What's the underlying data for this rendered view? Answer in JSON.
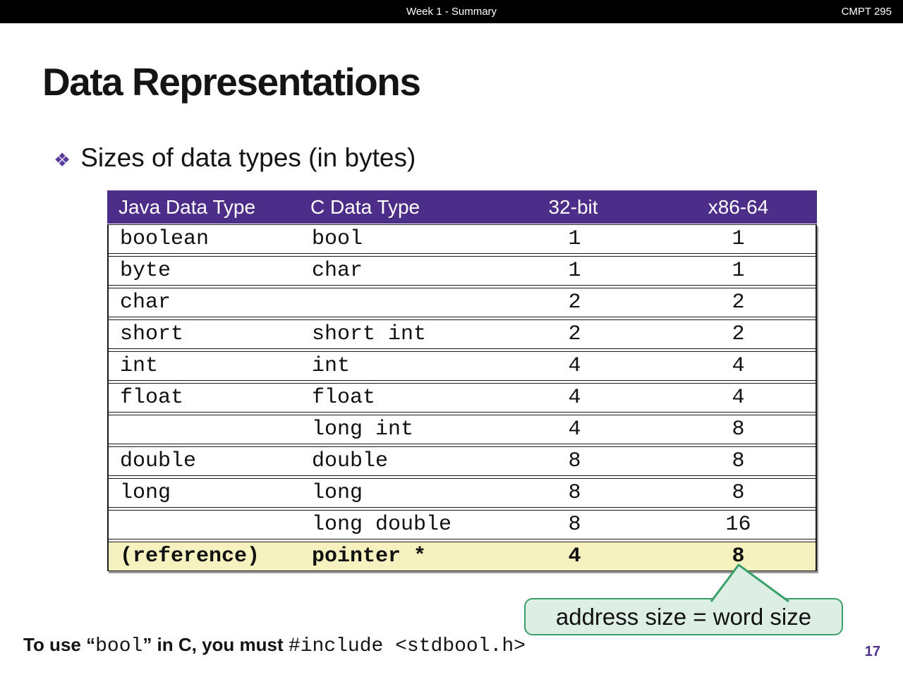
{
  "top_bar": {
    "center_label": "Week 1 - Summary",
    "right_label": "CMPT 295"
  },
  "slide": {
    "title": "Data Representations",
    "bullet_marker": "❖",
    "bullet_text": "Sizes of data types (in bytes)"
  },
  "table": {
    "headers": [
      "Java Data Type",
      "C Data Type",
      "32-bit",
      "x86-64"
    ],
    "rows": [
      [
        "boolean",
        "bool",
        "1",
        "1"
      ],
      [
        "byte",
        "char",
        "1",
        "1"
      ],
      [
        "char",
        "",
        "2",
        "2"
      ],
      [
        "short",
        "short int",
        "2",
        "2"
      ],
      [
        "int",
        "int",
        "4",
        "4"
      ],
      [
        "float",
        "float",
        "4",
        "4"
      ],
      [
        "",
        "long int",
        "4",
        "8"
      ],
      [
        "double",
        "double",
        "8",
        "8"
      ],
      [
        "long",
        "long",
        "8",
        "8"
      ],
      [
        "",
        "long double",
        "8",
        "16"
      ],
      [
        "(reference)",
        "pointer *",
        "4",
        "8"
      ]
    ],
    "highlight_row_index": 10
  },
  "callout": {
    "text": "address size = word size"
  },
  "footnote": {
    "parts": [
      "To use “",
      "bool",
      "” in C, you must ",
      "#include <stdbool.h>"
    ]
  },
  "page_number": "17",
  "colors": {
    "top_bar_bg": "#000000",
    "header_bg": "#4C2E88",
    "header_text": "#FFFFFF",
    "row_border": "#1A1A1A",
    "highlight_bg": "#F5F2C0",
    "callout_bg": "#DDEFE5",
    "callout_border": "#3AA06A",
    "bullet_purple": "#5A3C9E",
    "page_number_purple": "#4F3190",
    "table_shadow": "#9B9B9B"
  }
}
